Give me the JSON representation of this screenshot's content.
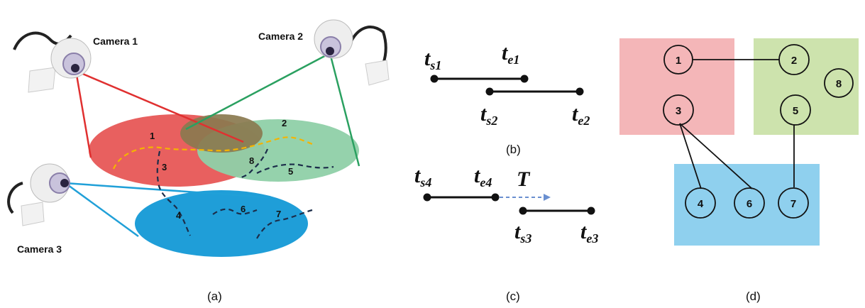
{
  "panel_a": {
    "caption": "(a)",
    "cameras": [
      "Camera 1",
      "Camera 2",
      "Camera 3"
    ],
    "track_numbers": [
      "1",
      "2",
      "3",
      "4",
      "5",
      "6",
      "7",
      "8"
    ],
    "colors": {
      "camera1_fov": "#e8605f",
      "camera2_fov": "#8fd0a8",
      "camera3_fov": "#1f9ed8",
      "overlap": "#8a7a4f"
    }
  },
  "panel_b": {
    "caption": "(b)",
    "labels": [
      {
        "main": "t",
        "sub": "s1"
      },
      {
        "main": "t",
        "sub": "e1"
      },
      {
        "main": "t",
        "sub": "s2"
      },
      {
        "main": "t",
        "sub": "e2"
      }
    ]
  },
  "panel_c": {
    "caption": "(c)",
    "gap_label": "T",
    "labels": [
      {
        "main": "t",
        "sub": "s4"
      },
      {
        "main": "t",
        "sub": "e4"
      },
      {
        "main": "t",
        "sub": "s3"
      },
      {
        "main": "t",
        "sub": "e3"
      }
    ]
  },
  "panel_d": {
    "caption": "(d)",
    "nodes": [
      "1",
      "2",
      "3",
      "4",
      "5",
      "6",
      "7",
      "8"
    ],
    "colors": {
      "group1": "#f4b6b8",
      "group2": "#cde3ad",
      "group3": "#8fd0ee"
    }
  }
}
